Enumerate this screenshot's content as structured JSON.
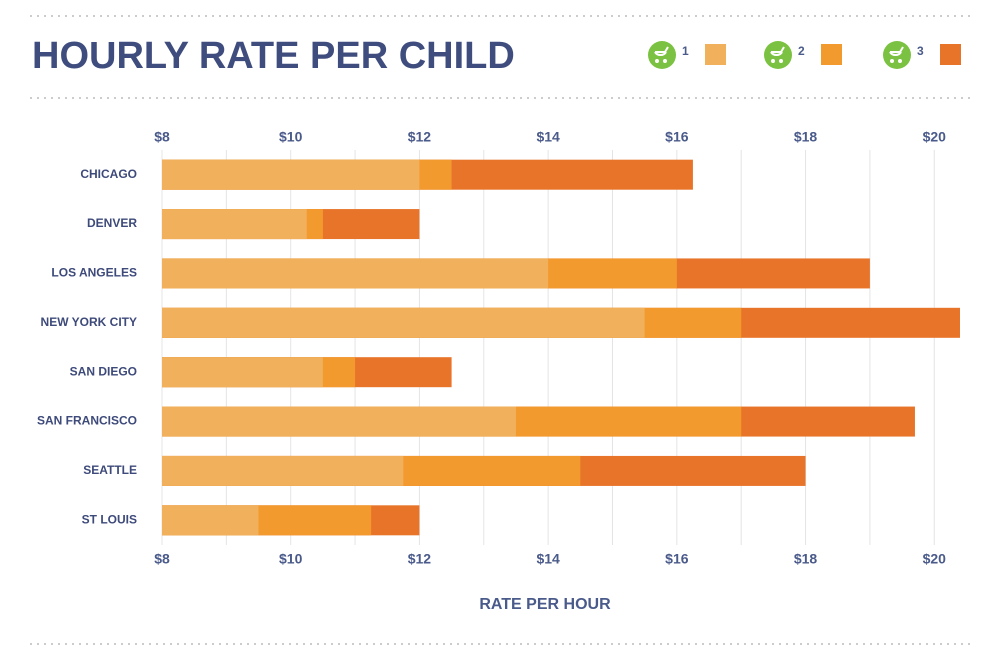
{
  "chart_data": {
    "type": "bar",
    "orientation": "horizontal",
    "overlap": true,
    "title": "HOURLY RATE PER CHILD",
    "x_label": "RATE PER HOUR",
    "categories": [
      "CHICAGO",
      "DENVER",
      "LOS ANGELES",
      "NEW YORK CITY",
      "SAN DIEGO",
      "SAN FRANCISCO",
      "SEATTLE",
      "ST LOUIS"
    ],
    "series": [
      {
        "name": "1",
        "color": "#f0b05c",
        "values": [
          12,
          10.25,
          14,
          15.5,
          10.5,
          13.5,
          11.75,
          9.5
        ]
      },
      {
        "name": "2",
        "color": "#f39a2e",
        "values": [
          12.5,
          10.5,
          16,
          17,
          11,
          17,
          14.5,
          11.25
        ]
      },
      {
        "name": "3",
        "color": "#e8742a",
        "values": [
          16.25,
          12,
          19,
          20.4,
          12.5,
          19.7,
          18,
          12
        ]
      }
    ],
    "xlim": [
      8,
      20.4
    ],
    "xticks": [
      {
        "value": 8,
        "label": "$8"
      },
      {
        "value": 10,
        "label": "$10"
      },
      {
        "value": 12,
        "label": "$12"
      },
      {
        "value": 14,
        "label": "$14"
      },
      {
        "value": 16,
        "label": "$16"
      },
      {
        "value": 18,
        "label": "$18"
      },
      {
        "value": 20,
        "label": "$20"
      }
    ],
    "minor_grid": [
      9,
      11,
      13,
      15,
      17,
      19
    ],
    "grid": true,
    "legend": "top-right"
  }
}
